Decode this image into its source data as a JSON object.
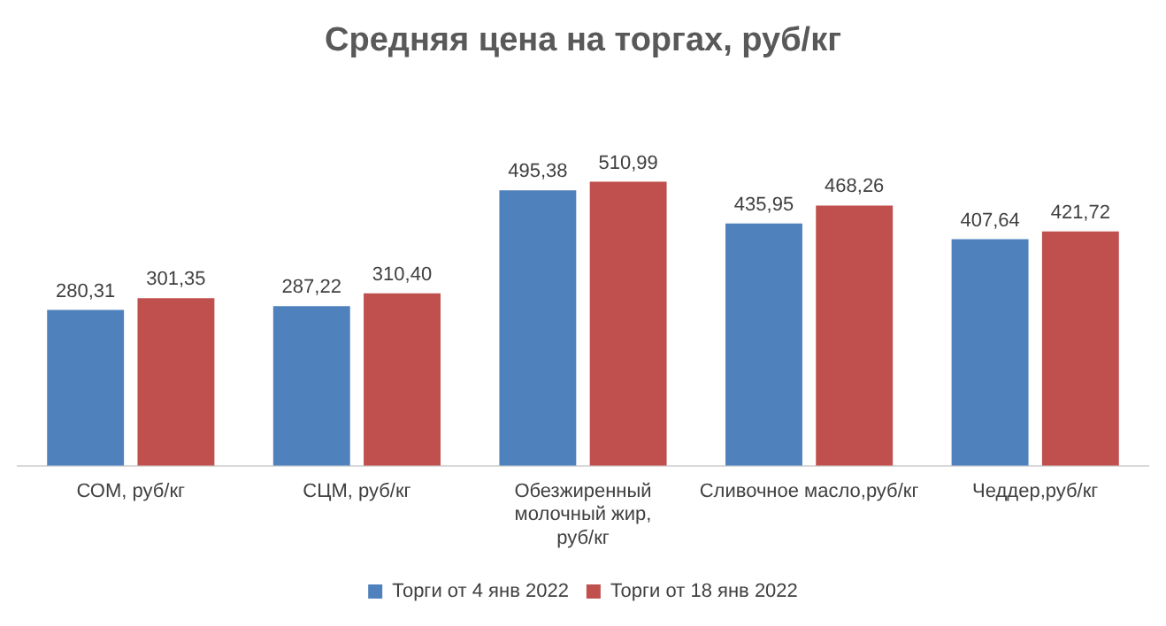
{
  "chart_data": {
    "type": "bar",
    "title": "Средняя цена на торгах, руб/кг",
    "categories": [
      "СОМ, руб/кг",
      "СЦМ, руб/кг",
      "Обезжиренный молочный жир, руб/кг",
      "Сливочное масло,руб/кг",
      "Чеддер,руб/кг"
    ],
    "series": [
      {
        "name": "Торги от 4 янв 2022",
        "color": "#4f81bd",
        "values": [
          280.31,
          287.22,
          495.38,
          435.95,
          407.64
        ],
        "value_labels": [
          "280,31",
          "287,22",
          "495,38",
          "435,95",
          "407,64"
        ]
      },
      {
        "name": "Торги от 18 янв 2022",
        "color": "#c0504d",
        "values": [
          301.35,
          310.4,
          510.99,
          468.26,
          421.72
        ],
        "value_labels": [
          "301,35",
          "310,40",
          "510,99",
          "468,26",
          "421,72"
        ]
      }
    ],
    "legend": "bottom",
    "grid": false,
    "tick_labels": "x"
  }
}
